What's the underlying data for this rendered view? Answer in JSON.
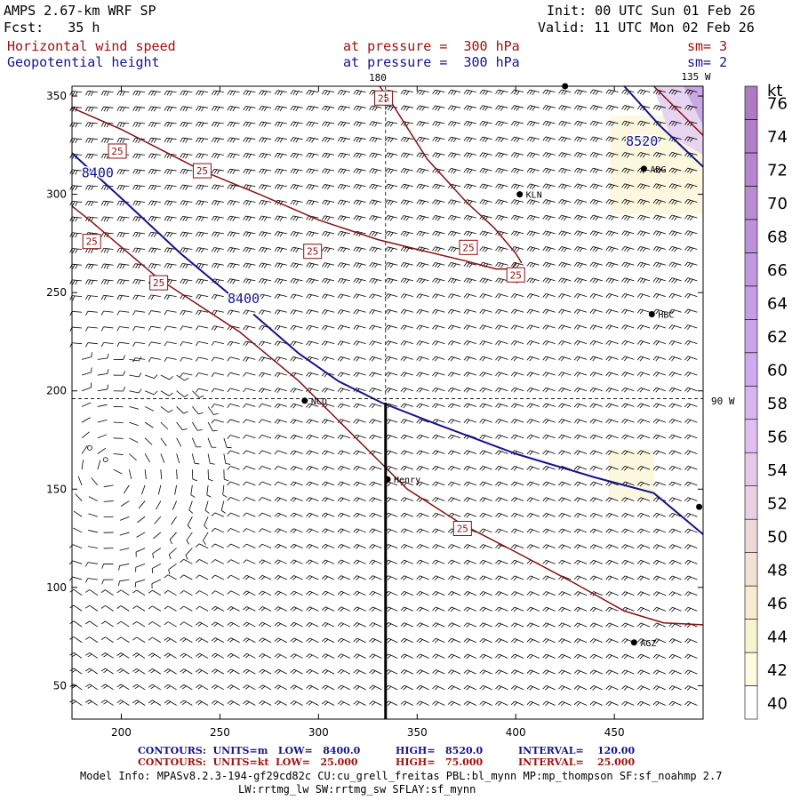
{
  "header": {
    "model": "AMPS 2.67-km WRF SP",
    "init": "Init: 00 UTC Sun 01 Feb 26",
    "fcst": "Fcst:   35 h",
    "valid": "Valid: 11 UTC Mon 02 Feb 26",
    "field1": "Horizontal wind speed",
    "level1": "at pressure =  300 hPa",
    "sm1": "sm= 3",
    "field2": "Geopotential height",
    "level2": "at pressure =  300 hPa",
    "sm2": "sm= 2"
  },
  "map_labels": {
    "lon180": "180",
    "lon135w": "135 W",
    "lon90w": "90 W"
  },
  "colors": {
    "wind_contour": "#8b1010",
    "height_contour": "#14148c",
    "barb": "#000000"
  },
  "chart_data": {
    "type": "contour map with wind barbs and color-filled wind speed",
    "title": "Horizontal wind speed / Geopotential height at pressure = 300 hPa",
    "xlim": [
      175,
      495
    ],
    "ylim": [
      33,
      355
    ],
    "x_ticks": [
      200,
      250,
      300,
      350,
      400,
      450
    ],
    "y_ticks": [
      50,
      100,
      150,
      200,
      250,
      300,
      350
    ],
    "colorbar": {
      "units": "kt",
      "ticks": [
        40,
        42,
        44,
        46,
        48,
        50,
        52,
        54,
        56,
        58,
        60,
        62,
        64,
        66,
        68,
        70,
        72,
        74,
        76
      ],
      "colors": [
        "#ffffff",
        "#fcfce0",
        "#f8f4d0",
        "#f6ecd0",
        "#f2e2d4",
        "#eed8da",
        "#ead0e2",
        "#e6c8ea",
        "#e0bff0",
        "#d8b4f0",
        "#d0aaf0",
        "#caa4ec",
        "#c69ee6",
        "#c298e0",
        "#be92da",
        "#ba8cd4",
        "#b686ce",
        "#b280c8",
        "#ae7ac2"
      ]
    },
    "contours_height": {
      "units": "m",
      "low": "8400.0",
      "high": "8520.0",
      "interval": "120.00",
      "labels": [
        {
          "text": "8400",
          "x": 188,
          "y": 311
        },
        {
          "text": "8400",
          "x": 262,
          "y": 247
        },
        {
          "text": "8520",
          "x": 464,
          "y": 327
        }
      ]
    },
    "contours_wind": {
      "units": "kt",
      "low": "25.000",
      "high": "75.000",
      "interval": "25.000",
      "labels": [
        {
          "text": "25",
          "x": 198,
          "y": 322
        },
        {
          "text": "25",
          "x": 241,
          "y": 312
        },
        {
          "text": "25",
          "x": 333,
          "y": 349
        },
        {
          "text": "25",
          "x": 185,
          "y": 276
        },
        {
          "text": "25",
          "x": 297,
          "y": 271
        },
        {
          "text": "25",
          "x": 376,
          "y": 273
        },
        {
          "text": "25",
          "x": 400,
          "y": 259
        },
        {
          "text": "25",
          "x": 219,
          "y": 255
        },
        {
          "text": "25",
          "x": 373,
          "y": 130
        }
      ]
    },
    "stations": [
      {
        "name": "ADG",
        "x": 465,
        "y": 313
      },
      {
        "name": "KLN",
        "x": 402,
        "y": 300
      },
      {
        "name": "HBC",
        "x": 469,
        "y": 239
      },
      {
        "name": "NCO",
        "x": 293,
        "y": 195
      },
      {
        "name": "Henry",
        "x": 335,
        "y": 155
      },
      {
        "name": "AGZ",
        "x": 460,
        "y": 72
      },
      {
        "name": "",
        "x": 493,
        "y": 141
      },
      {
        "name": "",
        "x": 425,
        "y": 355
      }
    ]
  },
  "footer": {
    "line1_a": "CONTOURS:  UNITS=m   LOW=   8400.0",
    "line1_b": "HIGH=   8520.0",
    "line1_c": "INTERVAL=    120.00",
    "line2_a": "CONTOURS:  UNITS=kt  LOW=   25.000",
    "line2_b": "HIGH=   75.000",
    "line2_c": "INTERVAL=    25.000",
    "model_info": "Model Info: MPASv8.2.3-194-gf29cd82c CU:cu_grell_freitas PBL:bl_mynn MP:mp_thompson SF:sf_noahmp 2.7",
    "model_info2": "LW:rrtmg_lw SW:rrtmg_sw SFLAY:sf_mynn"
  }
}
